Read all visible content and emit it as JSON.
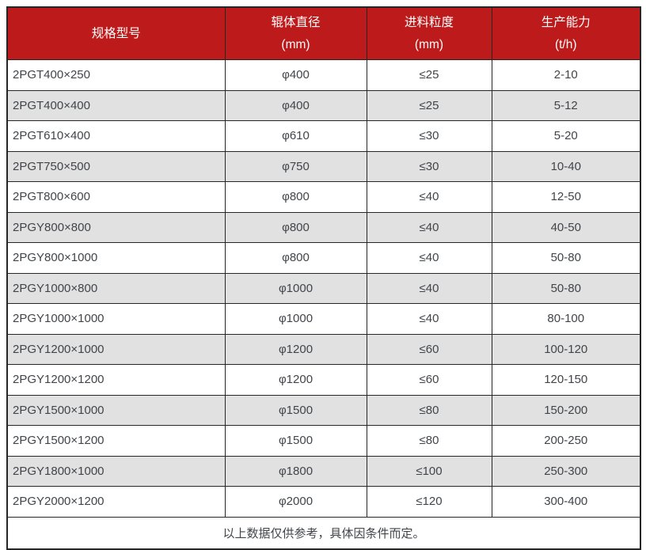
{
  "table": {
    "columns": [
      {
        "title": "规格型号",
        "unit": ""
      },
      {
        "title": "辊体直径",
        "unit": "(mm)"
      },
      {
        "title": "进料粒度",
        "unit": "(mm)"
      },
      {
        "title": "生产能力",
        "unit": "(t/h)"
      }
    ],
    "rows": [
      [
        "2PGT400×250",
        "φ400",
        "≤25",
        "2-10"
      ],
      [
        "2PGT400×400",
        "φ400",
        "≤25",
        "5-12"
      ],
      [
        "2PGT610×400",
        "φ610",
        "≤30",
        "5-20"
      ],
      [
        "2PGT750×500",
        "φ750",
        "≤30",
        "10-40"
      ],
      [
        "2PGT800×600",
        "φ800",
        "≤40",
        "12-50"
      ],
      [
        "2PGY800×800",
        "φ800",
        "≤40",
        "40-50"
      ],
      [
        "2PGY800×1000",
        "φ800",
        "≤40",
        "50-80"
      ],
      [
        "2PGY1000×800",
        "φ1000",
        "≤40",
        "50-80"
      ],
      [
        "2PGY1000×1000",
        "φ1000",
        "≤40",
        "80-100"
      ],
      [
        "2PGY1200×1000",
        "φ1200",
        "≤60",
        "100-120"
      ],
      [
        "2PGY1200×1200",
        "φ1200",
        "≤60",
        "120-150"
      ],
      [
        "2PGY1500×1000",
        "φ1500",
        "≤80",
        "150-200"
      ],
      [
        "2PGY1500×1200",
        "φ1500",
        "≤80",
        "200-250"
      ],
      [
        "2PGY1800×1000",
        "φ1800",
        "≤100",
        "250-300"
      ],
      [
        "2PGY2000×1200",
        "φ2000",
        "≤120",
        "300-400"
      ]
    ],
    "footer_note": "以上数据仅供参考，具体因条件而定。"
  },
  "colors": {
    "header_bg": "#bd1b1b",
    "header_text": "#ffffff",
    "row_alt_bg": "#e1e1e1",
    "border": "#262626",
    "text": "#414549"
  }
}
